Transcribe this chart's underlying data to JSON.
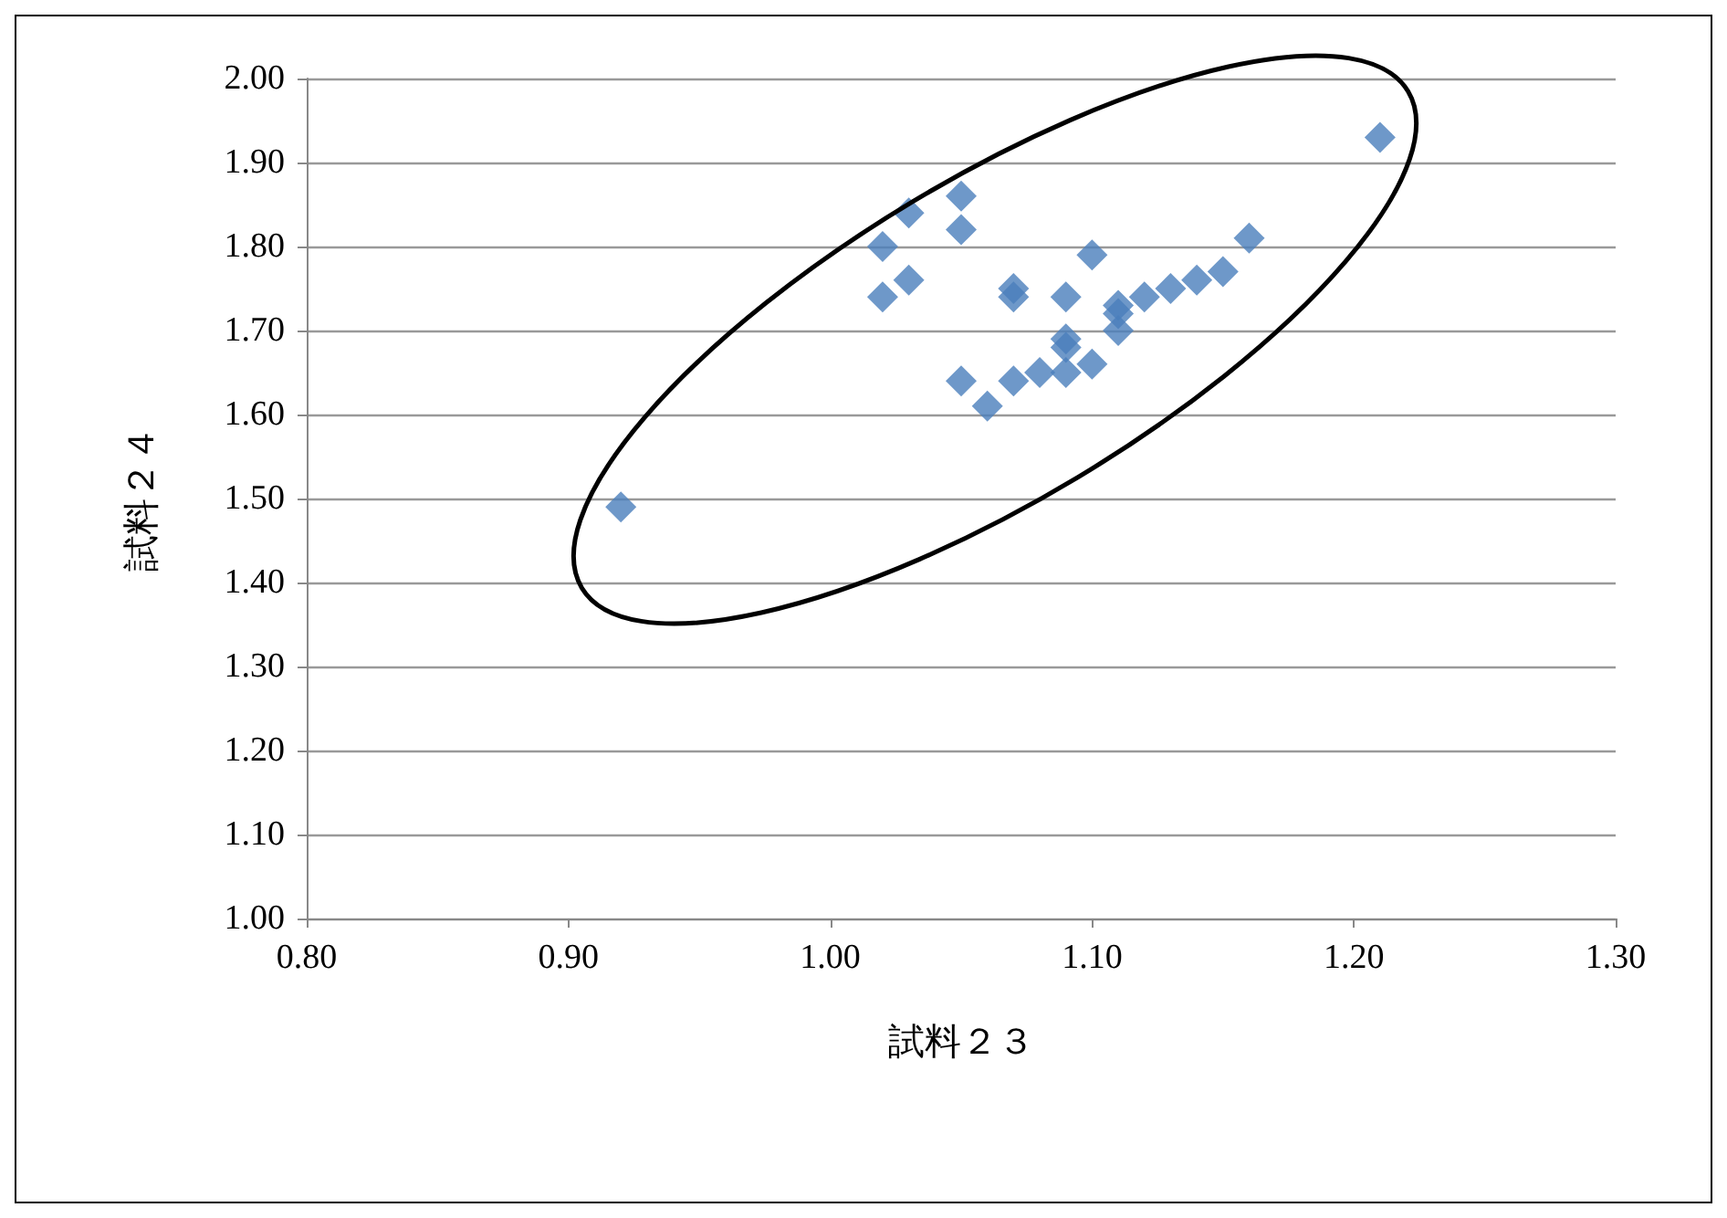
{
  "chart_data": {
    "type": "scatter",
    "xlabel": "試料２３",
    "ylabel": "試料２４",
    "x": [
      0.92,
      1.02,
      1.02,
      1.03,
      1.03,
      1.05,
      1.05,
      1.05,
      1.06,
      1.07,
      1.07,
      1.07,
      1.08,
      1.09,
      1.09,
      1.09,
      1.09,
      1.1,
      1.1,
      1.11,
      1.11,
      1.11,
      1.12,
      1.13,
      1.14,
      1.15,
      1.16,
      1.21
    ],
    "series": [
      {
        "color": "#4a7ebb",
        "values": [
          1.49,
          1.8,
          1.74,
          1.84,
          1.76,
          1.86,
          1.82,
          1.64,
          1.61,
          1.75,
          1.74,
          1.64,
          1.65,
          1.74,
          1.69,
          1.68,
          1.65,
          1.79,
          1.66,
          1.73,
          1.72,
          1.7,
          1.74,
          1.75,
          1.76,
          1.77,
          1.81,
          1.93
        ]
      }
    ],
    "xlim": [
      0.8,
      1.3
    ],
    "xticks": [
      {
        "value": 0.8,
        "label": "0.80"
      },
      {
        "value": 0.9,
        "label": "0.90"
      },
      {
        "value": 1.0,
        "label": "1.00"
      },
      {
        "value": 1.1,
        "label": "1.10"
      },
      {
        "value": 1.2,
        "label": "1.20"
      },
      {
        "value": 1.3,
        "label": "1.30"
      }
    ],
    "ylim": [
      1.0,
      2.0
    ],
    "yticks": [
      {
        "value": 1.0,
        "label": "1.00"
      },
      {
        "value": 1.1,
        "label": "1.10"
      },
      {
        "value": 1.2,
        "label": "1.20"
      },
      {
        "value": 1.3,
        "label": "1.30"
      },
      {
        "value": 1.4,
        "label": "1.40"
      },
      {
        "value": 1.5,
        "label": "1.50"
      },
      {
        "value": 1.6,
        "label": "1.60"
      },
      {
        "value": 1.7,
        "label": "1.70"
      },
      {
        "value": 1.8,
        "label": "1.80"
      },
      {
        "value": 1.9,
        "label": "1.90"
      },
      {
        "value": 2.0,
        "label": "2.00"
      }
    ],
    "grid": "y",
    "marker": "diamond"
  }
}
